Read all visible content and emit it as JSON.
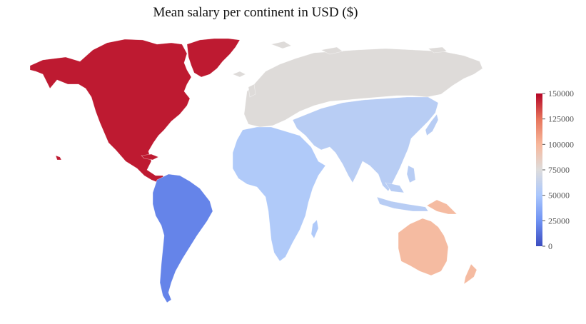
{
  "title": "Mean salary per continent in USD ($)",
  "colorscale": {
    "name": "coolwarm",
    "min": 0,
    "max": 150000,
    "ticks": [
      {
        "value": 0,
        "label": "0"
      },
      {
        "value": 25000,
        "label": "25000"
      },
      {
        "value": 50000,
        "label": "50000"
      },
      {
        "value": 75000,
        "label": "75000"
      },
      {
        "value": 100000,
        "label": "100000"
      },
      {
        "value": 125000,
        "label": "125000"
      },
      {
        "value": 150000,
        "label": "150000"
      }
    ],
    "stops": [
      "#3b4cc0",
      "#6f92f3",
      "#aac7fd",
      "#dddcdc",
      "#f7b89c",
      "#e7745b",
      "#b40426"
    ]
  },
  "chart_data": {
    "type": "choropleth",
    "title": "Mean salary per continent in USD ($)",
    "regions": [
      {
        "name": "North America",
        "value": 145000
      },
      {
        "name": "South America",
        "value": 20000
      },
      {
        "name": "Europe",
        "value": 76000
      },
      {
        "name": "Africa",
        "value": 53000
      },
      {
        "name": "Asia",
        "value": 57000
      },
      {
        "name": "Oceania",
        "value": 98000
      }
    ],
    "colorbar_range": [
      0,
      150000
    ]
  }
}
